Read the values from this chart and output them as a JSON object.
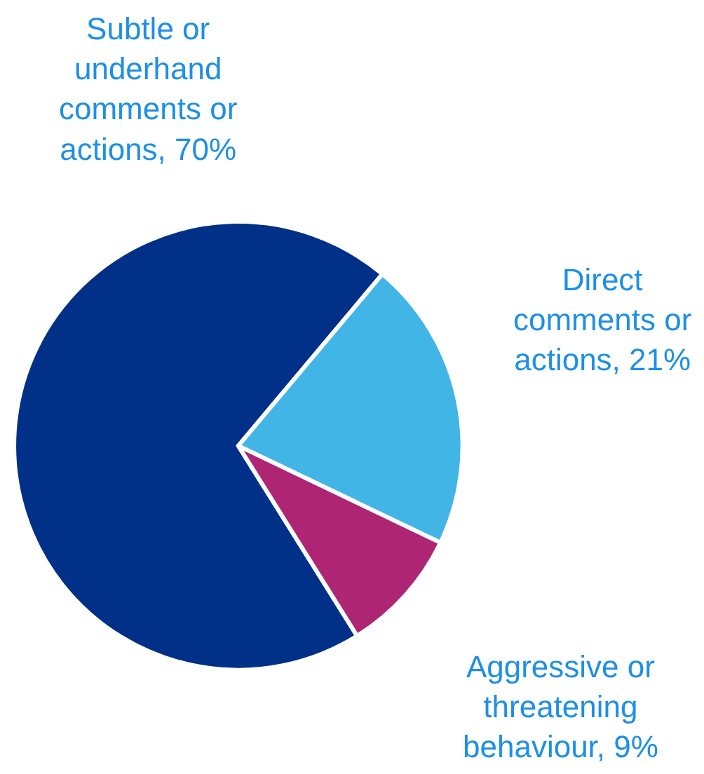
{
  "chart_data": {
    "type": "pie",
    "categories": [
      "Subtle or underhand comments or actions",
      "Direct comments or actions",
      "Aggressive or threatening behaviour"
    ],
    "values": [
      70,
      21,
      9
    ],
    "colors": [
      "#003087",
      "#41b6e6",
      "#ae2573"
    ],
    "value_labels": [
      "70%",
      "21%",
      "9%"
    ],
    "legend": false
  }
}
